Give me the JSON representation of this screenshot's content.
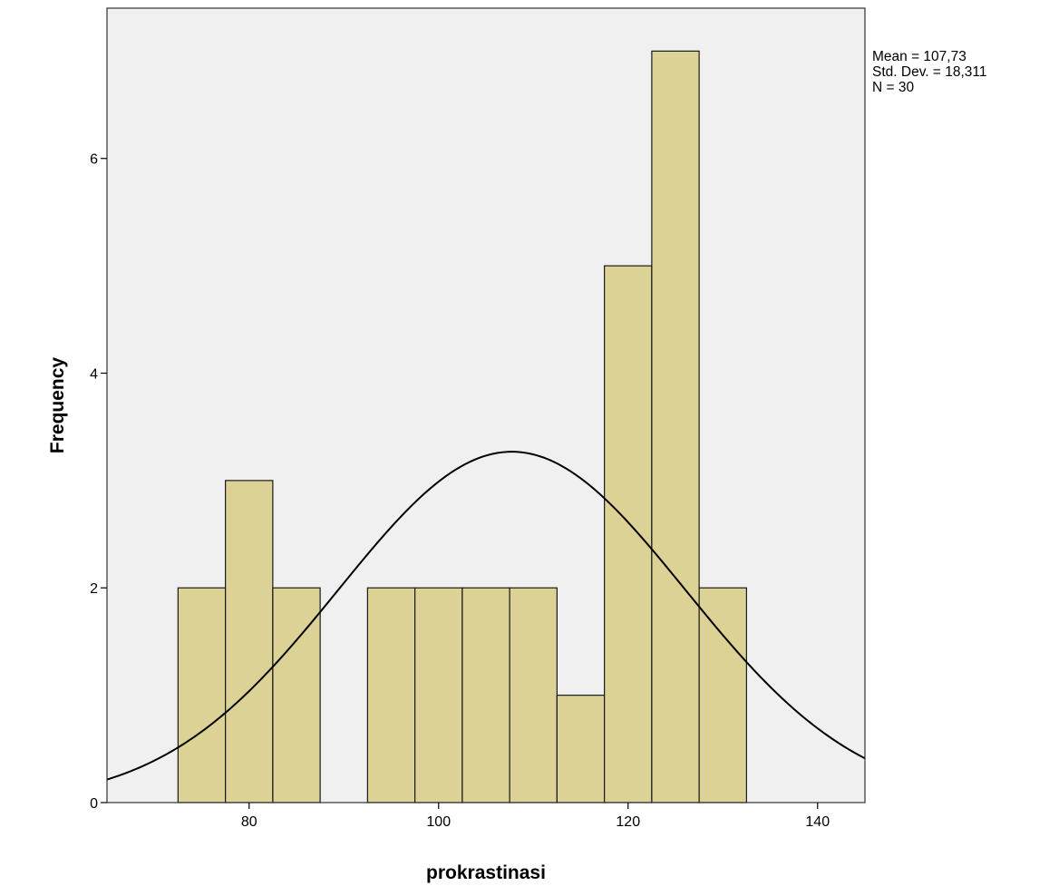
{
  "chart_data": {
    "type": "bar",
    "xlabel": "prokrastinasi",
    "ylabel": "Frequency",
    "xlim": [
      65,
      145
    ],
    "ylim": [
      0,
      7.4
    ],
    "bin_width": 5,
    "bins": [
      {
        "start": 72.5,
        "end": 77.5,
        "count": 2
      },
      {
        "start": 77.5,
        "end": 82.5,
        "count": 3
      },
      {
        "start": 82.5,
        "end": 87.5,
        "count": 2
      },
      {
        "start": 87.5,
        "end": 92.5,
        "count": 0
      },
      {
        "start": 92.5,
        "end": 97.5,
        "count": 2
      },
      {
        "start": 97.5,
        "end": 102.5,
        "count": 2
      },
      {
        "start": 102.5,
        "end": 107.5,
        "count": 2
      },
      {
        "start": 107.5,
        "end": 112.5,
        "count": 2
      },
      {
        "start": 112.5,
        "end": 117.5,
        "count": 1
      },
      {
        "start": 117.5,
        "end": 122.5,
        "count": 5
      },
      {
        "start": 122.5,
        "end": 127.5,
        "count": 7
      },
      {
        "start": 127.5,
        "end": 132.5,
        "count": 2
      }
    ],
    "x_ticks": [
      80,
      100,
      120,
      140
    ],
    "y_ticks": [
      0,
      2,
      4,
      6
    ],
    "x_tick_labels": [
      "80",
      "100",
      "120",
      "140"
    ],
    "y_tick_labels": [
      "0",
      "2",
      "4",
      "6"
    ],
    "normal_curve": {
      "mean": 107.73,
      "sd": 18.311,
      "n": 30
    },
    "stats": {
      "mean": "Mean = 107,73",
      "std_dev": "Std. Dev. = 18,311",
      "n": "N = 30"
    },
    "grid": false,
    "colors": {
      "bar_fill": "#d8cd85",
      "bar_stroke": "#1a1a1a",
      "plot_background": "#f0f0f0",
      "curve": "#000000"
    }
  }
}
